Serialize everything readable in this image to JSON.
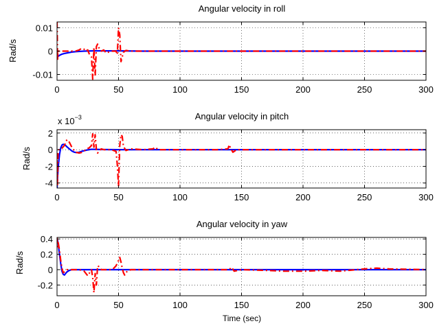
{
  "colors": {
    "series_a": "#0000ff",
    "series_b": "#ff0000",
    "axis": "#000000"
  },
  "chart_data": [
    {
      "type": "line",
      "title": "Angular velocity in roll",
      "ylabel": "Rad/s",
      "xlabel": "",
      "exponent_label": "",
      "xlim": [
        0,
        300
      ],
      "ylim": [
        -0.0125,
        0.0125
      ],
      "xticks": [
        0,
        50,
        100,
        150,
        200,
        250,
        300
      ],
      "xtick_labels": [
        "0",
        "50",
        "100",
        "150",
        "200",
        "250",
        "300"
      ],
      "yticks": [
        -0.01,
        0,
        0.01
      ],
      "ytick_labels": [
        "-0.01",
        "0",
        "0.01"
      ],
      "grid": true,
      "series": [
        {
          "style": "solid",
          "color": "#0000ff",
          "x": [
            0,
            0.4,
            1,
            2,
            4,
            6,
            9,
            12,
            16,
            22,
            30,
            40,
            50,
            70,
            100,
            150,
            200,
            250,
            300
          ],
          "y": [
            0,
            -0.0025,
            -0.0022,
            -0.0018,
            -0.0013,
            -0.001,
            -0.0007,
            -0.0004,
            -0.0002,
            0,
            0.0001,
            0.0001,
            0.0001,
            0,
            0,
            0,
            0,
            0,
            0
          ]
        },
        {
          "style": "dashdot",
          "color": "#ff0000",
          "x": [
            0,
            0.2,
            0.4,
            0.8,
            2,
            6,
            10,
            15,
            18,
            20,
            22,
            23,
            25,
            26,
            28,
            29,
            30,
            31,
            32,
            33,
            34,
            36,
            38,
            40,
            44,
            48,
            49,
            50,
            51,
            52,
            53,
            54,
            56,
            60,
            70,
            100,
            150,
            200,
            250,
            300
          ],
          "y": [
            0.0125,
            0.006,
            -0.004,
            0,
            0,
            0,
            0,
            0,
            0.0005,
            0.0012,
            0.0008,
            0,
            0.0005,
            -0.001,
            -0.0025,
            -0.012,
            0.0015,
            -0.0105,
            0.002,
            0.003,
            0.0015,
            0,
            0.0005,
            -0.0008,
            0,
            0,
            -0.0015,
            0.01,
            0.007,
            -0.0045,
            -0.0025,
            -0.0005,
            0.0003,
            0,
            0,
            0,
            0,
            0,
            0,
            0
          ]
        }
      ]
    },
    {
      "type": "line",
      "title": "Angular velocity in pitch",
      "ylabel": "Rad/s",
      "xlabel": "",
      "exponent_label": "x 10",
      "exponent_power": "−3",
      "xlim": [
        0,
        300
      ],
      "ylim": [
        -4.6,
        2.4
      ],
      "xticks": [
        0,
        50,
        100,
        150,
        200,
        250,
        300
      ],
      "xtick_labels": [
        "0",
        "50",
        "100",
        "150",
        "200",
        "250",
        "300"
      ],
      "yticks": [
        -4,
        -2,
        0,
        2
      ],
      "ytick_labels": [
        "-4",
        "-2",
        "0",
        "2"
      ],
      "grid": true,
      "series": [
        {
          "style": "solid",
          "color": "#0000ff",
          "x": [
            0,
            0.5,
            1,
            2,
            3,
            4,
            5,
            6,
            7,
            8,
            10,
            12,
            14,
            16,
            18,
            20,
            24,
            28,
            35,
            50,
            100,
            150,
            200,
            250,
            300
          ],
          "y": [
            -4.6,
            -3.2,
            -2.0,
            -0.6,
            0.2,
            0.55,
            0.65,
            0.6,
            0.5,
            0.35,
            0.1,
            -0.15,
            -0.3,
            -0.35,
            -0.3,
            -0.2,
            -0.05,
            0.05,
            0.02,
            0,
            0,
            0,
            0,
            0,
            0
          ]
        },
        {
          "style": "dashdot",
          "color": "#ff0000",
          "x": [
            0,
            0.3,
            0.8,
            1.5,
            3,
            6,
            8,
            10,
            12,
            15,
            18,
            21,
            24,
            26,
            28,
            29,
            30,
            31,
            32,
            33,
            34,
            36,
            38,
            44,
            48,
            49,
            50,
            51,
            52,
            53,
            54,
            56,
            60,
            70,
            78,
            80,
            82,
            100,
            130,
            139,
            140,
            141,
            143,
            146,
            150,
            200,
            250,
            300
          ],
          "y": [
            -1.2,
            -4.3,
            -0.5,
            0,
            0,
            0.5,
            1.2,
            0.9,
            0.3,
            -0.3,
            -0.4,
            -0.3,
            0.1,
            0.2,
            0.5,
            1.9,
            0.3,
            1.8,
            0,
            -0.4,
            -0.2,
            0.1,
            0,
            0,
            -0.2,
            -1.8,
            -4.4,
            0.5,
            1.8,
            1.6,
            0.4,
            -0.1,
            0.1,
            0,
            0.1,
            0.3,
            0,
            0,
            0,
            0.1,
            0.6,
            0.2,
            -0.3,
            0,
            0,
            0,
            0,
            0
          ]
        }
      ]
    },
    {
      "type": "line",
      "title": "Angular velocity in yaw",
      "ylabel": "Rad/s",
      "xlabel": "Time (sec)",
      "exponent_label": "",
      "xlim": [
        0,
        300
      ],
      "ylim": [
        -0.34,
        0.42
      ],
      "xticks": [
        0,
        50,
        100,
        150,
        200,
        250,
        300
      ],
      "xtick_labels": [
        "0",
        "50",
        "100",
        "150",
        "200",
        "250",
        "300"
      ],
      "yticks": [
        -0.2,
        0,
        0.2,
        0.4
      ],
      "ytick_labels": [
        "-0.2",
        "0",
        "0.2",
        "0.4"
      ],
      "grid": true,
      "series": [
        {
          "style": "solid",
          "color": "#0000ff",
          "x": [
            0,
            0.5,
            1,
            2,
            3,
            4,
            5,
            6,
            7,
            8,
            10,
            12,
            15,
            20,
            30,
            50,
            100,
            150,
            200,
            250,
            300
          ],
          "y": [
            0.4,
            0.38,
            0.33,
            0.2,
            0.08,
            -0.02,
            -0.06,
            -0.07,
            -0.05,
            -0.03,
            -0.01,
            0,
            0,
            0,
            0,
            0,
            0,
            0,
            0,
            0,
            0
          ]
        },
        {
          "style": "dashdot",
          "color": "#ff0000",
          "x": [
            0,
            0.5,
            1,
            2,
            3,
            4,
            5,
            6,
            8,
            10,
            14,
            18,
            22,
            25,
            28,
            29,
            30,
            31,
            32,
            33,
            34,
            36,
            40,
            45,
            48,
            50,
            51,
            52,
            53,
            54,
            55,
            57,
            60,
            70,
            100,
            140,
            142,
            144,
            150,
            170,
            185,
            200,
            215,
            230,
            250,
            260,
            270,
            300
          ],
          "y": [
            0.42,
            0.3,
            0.35,
            0.25,
            0.12,
            0.02,
            -0.04,
            -0.03,
            0,
            0,
            0,
            0,
            -0.02,
            -0.08,
            0,
            -0.1,
            -0.3,
            -0.05,
            -0.2,
            0.05,
            0.04,
            0,
            0,
            0,
            0.05,
            0.12,
            0.16,
            0.1,
            0.02,
            -0.04,
            -0.07,
            -0.02,
            0,
            0,
            0,
            0,
            0.03,
            -0.02,
            0,
            -0.01,
            -0.02,
            -0.02,
            -0.01,
            -0.02,
            0.01,
            0.02,
            0.01,
            0
          ]
        }
      ]
    }
  ]
}
